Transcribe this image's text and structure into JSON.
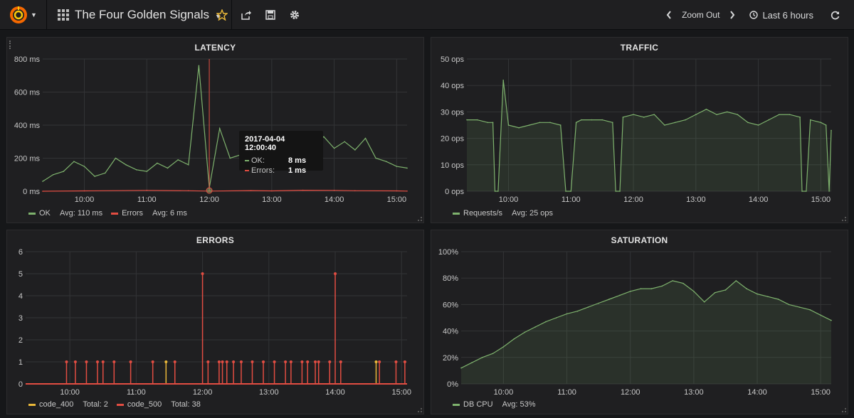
{
  "header": {
    "dashboard_title": "The Four Golden Signals",
    "zoom_out": "Zoom Out",
    "time_range": "Last 6 hours",
    "icons": [
      "grafana-logo-icon",
      "dashboard-grid-icon",
      "star-icon",
      "share-icon",
      "save-icon",
      "settings-icon",
      "chevron-left-icon",
      "chevron-right-icon",
      "clock-icon",
      "refresh-icon"
    ]
  },
  "colors": {
    "ok": "#7eb26d",
    "errors": "#e24d42",
    "code_400": "#eab839",
    "code_500": "#e24d42",
    "star": "#eab839"
  },
  "panels": {
    "latency": {
      "title": "LATENCY",
      "legend": [
        {
          "name": "OK",
          "stat": "Avg: 110 ms"
        },
        {
          "name": "Errors",
          "stat": "Avg: 6 ms"
        }
      ],
      "tooltip": {
        "time": "2017-04-04 12:00:40",
        "rows": [
          {
            "name": "OK:",
            "value": "8 ms"
          },
          {
            "name": "Errors:",
            "value": "1 ms"
          }
        ]
      }
    },
    "traffic": {
      "title": "TRAFFIC",
      "legend": [
        {
          "name": "Requests/s",
          "stat": "Avg: 25 ops"
        }
      ]
    },
    "errors": {
      "title": "ERRORS",
      "legend": [
        {
          "name": "code_400",
          "stat": "Total: 2"
        },
        {
          "name": "code_500",
          "stat": "Total: 38"
        }
      ]
    },
    "saturation": {
      "title": "SATURATION",
      "legend": [
        {
          "name": "DB CPU",
          "stat": "Avg: 53%"
        }
      ]
    }
  },
  "chart_data": [
    {
      "type": "line",
      "panel": "latency",
      "x_ticks": [
        "10:00",
        "11:00",
        "12:00",
        "13:00",
        "14:00",
        "15:00"
      ],
      "y_ticks": [
        "0 ms",
        "200 ms",
        "400 ms",
        "600 ms",
        "800 ms"
      ],
      "ylim": [
        0,
        800
      ],
      "x_range": [
        "09:20",
        "15:10"
      ],
      "series": [
        {
          "name": "OK",
          "x": [
            "09:20",
            "09:30",
            "09:40",
            "09:50",
            "10:00",
            "10:10",
            "10:20",
            "10:30",
            "10:40",
            "10:50",
            "11:00",
            "11:10",
            "11:20",
            "11:30",
            "11:40",
            "11:50",
            "12:00",
            "12:10",
            "12:20",
            "12:30",
            "12:40",
            "12:50",
            "13:00",
            "13:10",
            "13:20",
            "13:30",
            "13:40",
            "13:50",
            "14:00",
            "14:10",
            "14:20",
            "14:30",
            "14:40",
            "14:50",
            "15:00",
            "15:10"
          ],
          "values": [
            60,
            100,
            120,
            180,
            150,
            90,
            110,
            200,
            160,
            130,
            120,
            170,
            140,
            190,
            160,
            760,
            20,
            380,
            200,
            220,
            180,
            260,
            300,
            200,
            240,
            310,
            280,
            330,
            260,
            300,
            250,
            320,
            200,
            180,
            150,
            140
          ]
        },
        {
          "name": "Errors",
          "x": [
            "09:20",
            "10:00",
            "11:00",
            "11:40",
            "12:00",
            "12:40",
            "13:00",
            "13:30",
            "14:00",
            "14:20",
            "15:00",
            "15:10"
          ],
          "values": [
            0,
            2,
            5,
            3,
            1,
            4,
            2,
            6,
            5,
            3,
            2,
            1
          ]
        }
      ]
    },
    {
      "type": "area",
      "panel": "traffic",
      "x_ticks": [
        "10:00",
        "11:00",
        "12:00",
        "13:00",
        "14:00",
        "15:00"
      ],
      "y_ticks": [
        "0 ops",
        "10 ops",
        "20 ops",
        "30 ops",
        "40 ops",
        "50 ops"
      ],
      "ylim": [
        0,
        50
      ],
      "x_range": [
        "09:20",
        "15:10"
      ],
      "series": [
        {
          "name": "Requests/s",
          "x": [
            "09:20",
            "09:30",
            "09:40",
            "09:45",
            "09:47",
            "09:50",
            "09:55",
            "10:00",
            "10:10",
            "10:20",
            "10:30",
            "10:40",
            "10:50",
            "10:55",
            "11:00",
            "11:05",
            "11:10",
            "11:20",
            "11:30",
            "11:40",
            "11:43",
            "11:47",
            "11:50",
            "12:00",
            "12:10",
            "12:20",
            "12:30",
            "12:40",
            "12:50",
            "13:00",
            "13:10",
            "13:20",
            "13:30",
            "13:40",
            "13:50",
            "14:00",
            "14:10",
            "14:20",
            "14:30",
            "14:40",
            "14:42",
            "14:46",
            "14:50",
            "15:00",
            "15:05",
            "15:08",
            "15:10"
          ],
          "values": [
            27,
            27,
            26,
            26,
            0,
            0,
            42,
            25,
            24,
            25,
            26,
            26,
            25,
            0,
            0,
            26,
            27,
            27,
            27,
            26,
            0,
            0,
            28,
            29,
            28,
            29,
            25,
            26,
            27,
            29,
            31,
            29,
            30,
            29,
            26,
            25,
            27,
            29,
            29,
            28,
            0,
            0,
            27,
            26,
            25,
            0,
            23
          ]
        }
      ]
    },
    {
      "type": "line",
      "panel": "errors",
      "x_ticks": [
        "10:00",
        "11:00",
        "12:00",
        "13:00",
        "14:00",
        "15:00"
      ],
      "y_ticks": [
        "0",
        "1",
        "2",
        "3",
        "4",
        "5",
        "6"
      ],
      "ylim": [
        0,
        6
      ],
      "x_range": [
        "09:20",
        "15:05"
      ],
      "series": [
        {
          "name": "code_400",
          "spikes_at": [
            "11:27",
            "14:37"
          ],
          "values": [
            1,
            1
          ]
        },
        {
          "name": "code_500",
          "spikes_at": [
            "09:57",
            "10:05",
            "10:15",
            "10:25",
            "10:30",
            "10:40",
            "10:55",
            "11:15",
            "11:35",
            "12:00",
            "12:05",
            "12:15",
            "12:18",
            "12:22",
            "12:28",
            "12:35",
            "12:45",
            "12:55",
            "13:05",
            "13:15",
            "13:20",
            "13:30",
            "13:35",
            "13:42",
            "13:45",
            "13:55",
            "14:00",
            "14:05",
            "14:40",
            "14:55",
            "15:03"
          ],
          "values": [
            1,
            1,
            1,
            1,
            1,
            1,
            1,
            1,
            1,
            5,
            1,
            1,
            1,
            1,
            1,
            1,
            1,
            1,
            1,
            1,
            1,
            1,
            1,
            1,
            1,
            1,
            5,
            1,
            1,
            1,
            1
          ]
        }
      ]
    },
    {
      "type": "area",
      "panel": "saturation",
      "x_ticks": [
        "10:00",
        "11:00",
        "12:00",
        "13:00",
        "14:00",
        "15:00"
      ],
      "y_ticks": [
        "0%",
        "20%",
        "40%",
        "60%",
        "80%",
        "100%"
      ],
      "ylim": [
        0,
        100
      ],
      "x_range": [
        "09:20",
        "15:10"
      ],
      "series": [
        {
          "name": "DB CPU",
          "x": [
            "09:20",
            "09:30",
            "09:40",
            "09:50",
            "10:00",
            "10:10",
            "10:20",
            "10:30",
            "10:40",
            "10:50",
            "11:00",
            "11:10",
            "11:20",
            "11:30",
            "11:40",
            "11:50",
            "12:00",
            "12:10",
            "12:20",
            "12:30",
            "12:40",
            "12:50",
            "13:00",
            "13:10",
            "13:20",
            "13:30",
            "13:40",
            "13:50",
            "14:00",
            "14:10",
            "14:20",
            "14:30",
            "14:40",
            "14:50",
            "15:00",
            "15:10"
          ],
          "values": [
            12,
            16,
            20,
            23,
            28,
            34,
            39,
            43,
            47,
            50,
            53,
            55,
            58,
            61,
            64,
            67,
            70,
            72,
            72,
            74,
            78,
            76,
            70,
            62,
            69,
            71,
            78,
            72,
            68,
            66,
            64,
            60,
            58,
            56,
            52,
            48
          ]
        }
      ]
    }
  ]
}
